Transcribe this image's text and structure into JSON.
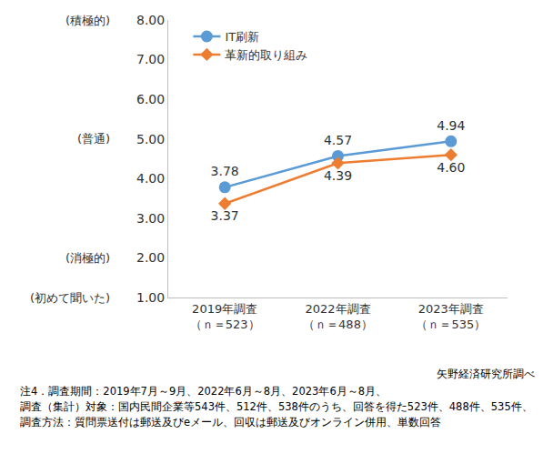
{
  "chart_data": {
    "type": "line",
    "categories": [
      "2019年調査\n（ｎ＝523）",
      "2022年調査\n（ｎ＝488）",
      "2023年調査\n（ｎ＝535）"
    ],
    "series": [
      {
        "name": "IT刷新",
        "color": "#5B9BD5",
        "marker": "circle",
        "values": [
          3.78,
          4.57,
          4.94
        ],
        "value_labels": [
          "3.78",
          "4.57",
          "4.94"
        ]
      },
      {
        "name": "革新的取り組み",
        "color": "#ED7D31",
        "marker": "diamond",
        "values": [
          3.37,
          4.39,
          4.6
        ],
        "value_labels": [
          "3.37",
          "4.39",
          "4.60"
        ]
      }
    ],
    "ylim": [
      1,
      8
    ],
    "yticks": [
      {
        "value": 1,
        "label": "1.00"
      },
      {
        "value": 2,
        "label": "2.00"
      },
      {
        "value": 3,
        "label": "3.00"
      },
      {
        "value": 4,
        "label": "4.00"
      },
      {
        "value": 5,
        "label": "5.00"
      },
      {
        "value": 6,
        "label": "6.00"
      },
      {
        "value": 7,
        "label": "7.00"
      },
      {
        "value": 8,
        "label": "8.00"
      }
    ],
    "annotations": [
      {
        "y": 8,
        "text": "(積極的)"
      },
      {
        "y": 5,
        "text": "(普通)"
      },
      {
        "y": 2,
        "text": "(消極的)"
      },
      {
        "y": 1,
        "text": "(初めて聞いた)"
      }
    ],
    "grid": false,
    "legend": "top-left",
    "data_labels": true,
    "source": "矢野経済研究所調べ",
    "notes": [
      "注4．調査期間：2019年7月～9月、2022年6月～8月、2023年6月～8月、",
      "調査（集計）対象：国内民間企業等543件、512件、538件のうち、回答を得た523件、488件、535件、",
      "調査方法：質問票送付は郵送及びeメール、回収は郵送及びオンライン併用、単数回答"
    ]
  }
}
